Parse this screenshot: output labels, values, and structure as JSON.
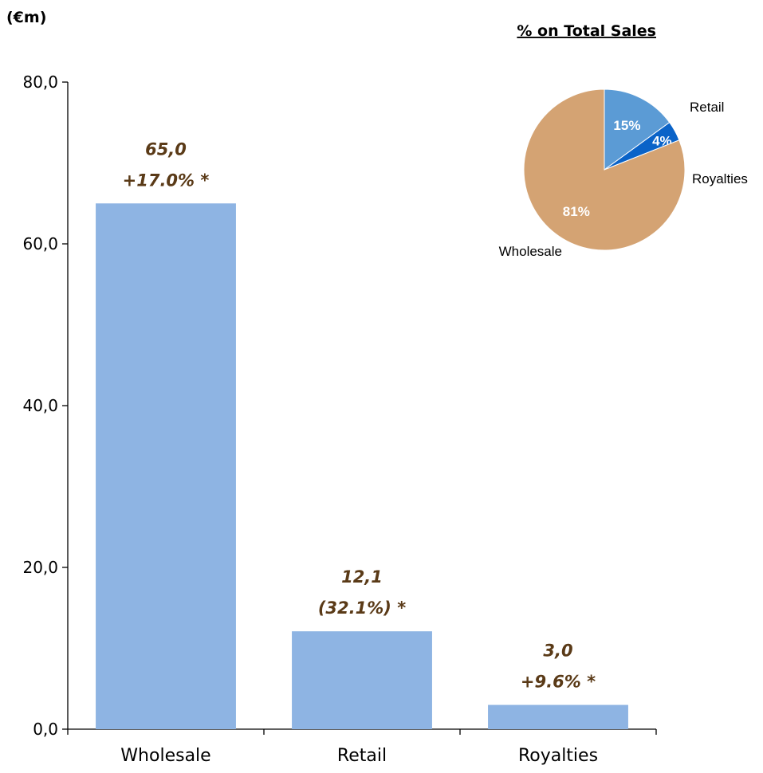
{
  "chart_data": [
    {
      "type": "bar",
      "unit_label": "(€m)",
      "categories": [
        "Wholesale",
        "Retail",
        "Royalties"
      ],
      "values": [
        65.0,
        12.1,
        3.0
      ],
      "value_labels": [
        "65,0",
        "12,1",
        "3,0"
      ],
      "change_labels": [
        "+17.0% *",
        "(32.1%) *",
        "+9.6% *"
      ],
      "ylim": [
        0,
        80
      ],
      "y_ticks": [
        0,
        20,
        40,
        60,
        80
      ],
      "y_tick_labels": [
        "0,0",
        "20,0",
        "40,0",
        "60,0",
        "80,0"
      ],
      "bar_color": "#8eb4e3",
      "label_color": "#5a3a17",
      "grid": false
    },
    {
      "type": "pie",
      "title": "% on Total Sales",
      "slices": [
        {
          "label": "Retail",
          "value": 15,
          "pct_label": "15%",
          "color": "#5b9bd5"
        },
        {
          "label": "Royalties",
          "value": 4,
          "pct_label": "4%",
          "color": "#0a63c8"
        },
        {
          "label": "Wholesale",
          "value": 81,
          "pct_label": "81%",
          "color": "#d4a373"
        }
      ]
    }
  ]
}
